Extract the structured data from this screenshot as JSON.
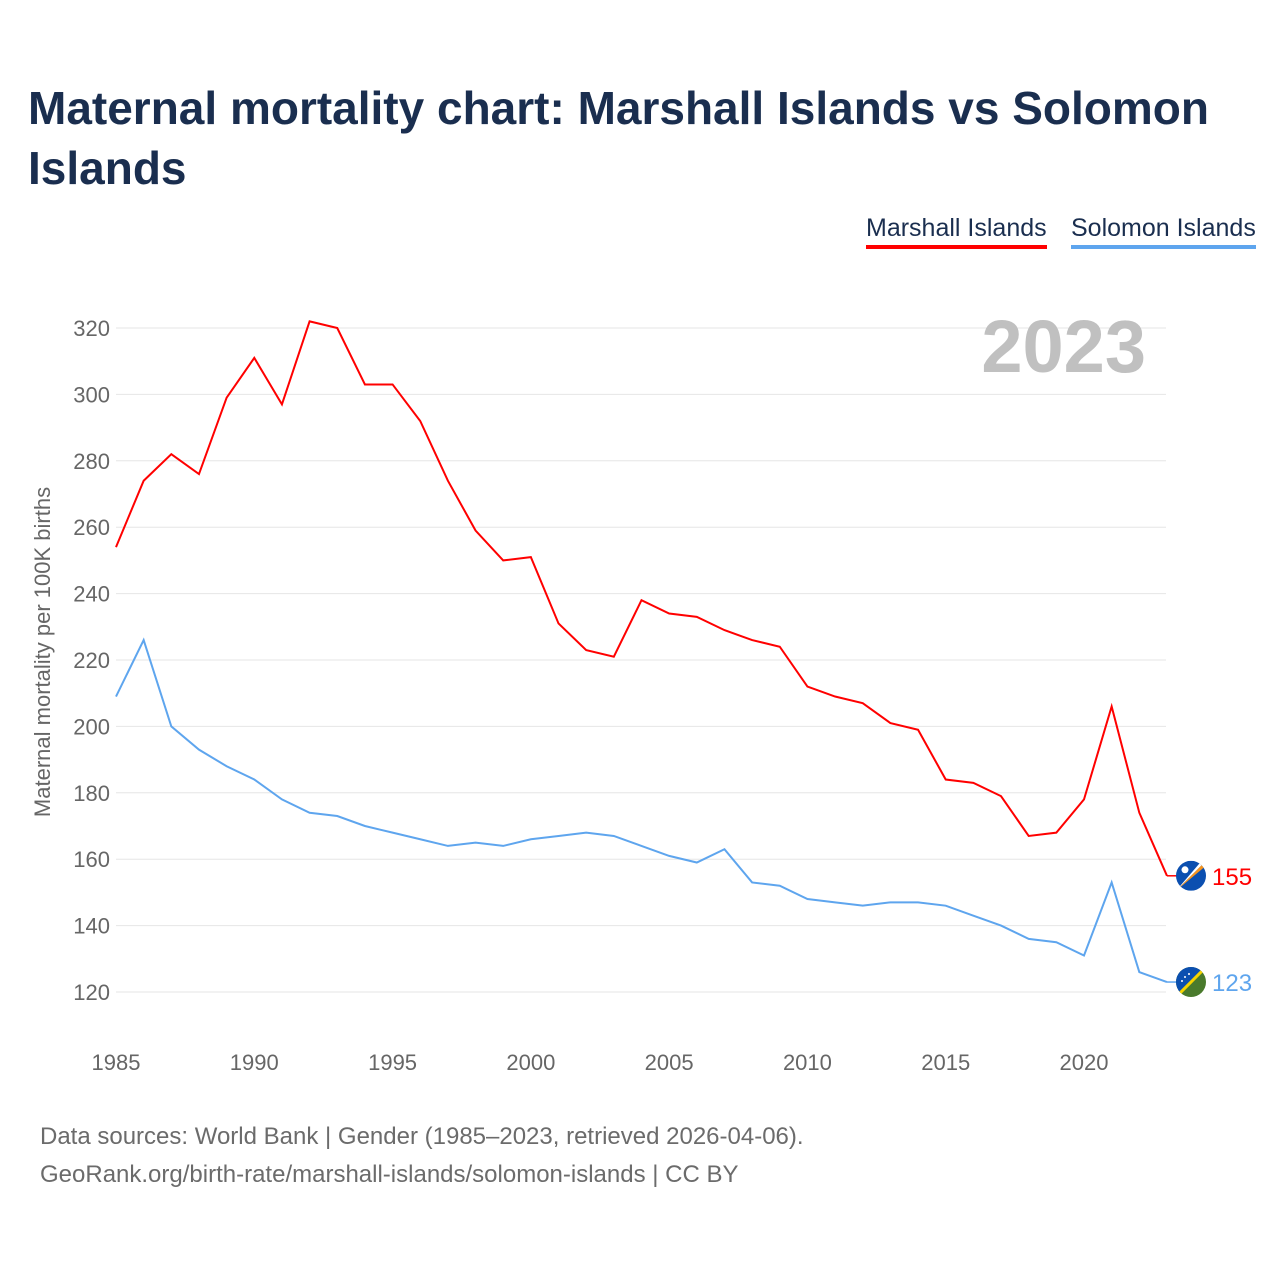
{
  "title": "Maternal mortality chart: Marshall Islands vs Solomon Islands",
  "source_line1": "Data sources: World Bank | Gender (1985–2023, retrieved 2026-04-06).",
  "source_line2": "GeoRank.org/birth-rate/marshall-islands/solomon-islands | CC BY",
  "chart_data": {
    "type": "line",
    "title": "Maternal mortality chart: Marshall Islands vs Solomon Islands",
    "ylabel": "Maternal mortality per 100K births",
    "xlabel": "",
    "year_label": "2023",
    "ylim": [
      110,
      330
    ],
    "xlim": [
      1985,
      2023
    ],
    "yticks": [
      120,
      140,
      160,
      180,
      200,
      220,
      240,
      260,
      280,
      300,
      320
    ],
    "xticks": [
      1985,
      1990,
      1995,
      2000,
      2005,
      2010,
      2015,
      2020
    ],
    "grid": true,
    "legend_placement": "top-right",
    "x": [
      1985,
      1986,
      1987,
      1988,
      1989,
      1990,
      1991,
      1992,
      1993,
      1994,
      1995,
      1996,
      1997,
      1998,
      1999,
      2000,
      2001,
      2002,
      2003,
      2004,
      2005,
      2006,
      2007,
      2008,
      2009,
      2010,
      2011,
      2012,
      2013,
      2014,
      2015,
      2016,
      2017,
      2018,
      2019,
      2020,
      2021,
      2022,
      2023
    ],
    "series": [
      {
        "name": "Marshall Islands",
        "color": "#ff0000",
        "end_label": "155",
        "values": [
          254,
          274,
          282,
          276,
          299,
          311,
          297,
          322,
          320,
          303,
          303,
          292,
          274,
          259,
          250,
          251,
          231,
          223,
          221,
          238,
          234,
          233,
          229,
          226,
          224,
          212,
          209,
          207,
          201,
          199,
          184,
          183,
          179,
          167,
          168,
          178,
          206,
          174,
          155
        ]
      },
      {
        "name": "Solomon Islands",
        "color": "#5ea5ee",
        "end_label": "123",
        "values": [
          209,
          226,
          200,
          193,
          188,
          184,
          178,
          174,
          173,
          170,
          168,
          166,
          164,
          165,
          164,
          166,
          167,
          168,
          167,
          164,
          161,
          159,
          163,
          153,
          152,
          148,
          147,
          146,
          147,
          147,
          146,
          143,
          140,
          136,
          135,
          131,
          153,
          126,
          123
        ]
      }
    ]
  }
}
